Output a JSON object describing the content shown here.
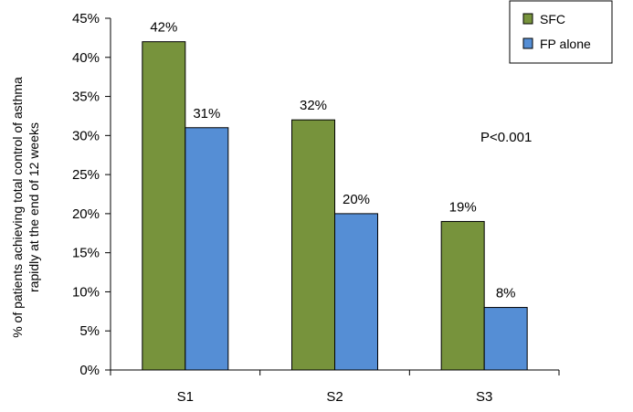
{
  "chart_data": {
    "type": "bar",
    "categories": [
      "S1",
      "S2",
      "S3"
    ],
    "series": [
      {
        "name": "SFC",
        "values": [
          42,
          32,
          19
        ],
        "color": "#77933c"
      },
      {
        "name": "FP alone",
        "values": [
          31,
          20,
          8
        ],
        "color": "#558ed5"
      }
    ],
    "data_labels": [
      [
        "42%",
        "32%",
        "19%"
      ],
      [
        "31%",
        "20%",
        "8%"
      ]
    ],
    "ylabel_lines": [
      "% of patients achieving total control of asthma",
      "rapidly at the end of 12 weeks"
    ],
    "ylim": [
      0,
      45
    ],
    "yticks": [
      0,
      5,
      10,
      15,
      20,
      25,
      30,
      35,
      40,
      45
    ],
    "ytick_labels": [
      "0%",
      "5%",
      "10%",
      "15%",
      "20%",
      "25%",
      "30%",
      "35%",
      "40%",
      "45%"
    ],
    "annotation": "P<0.001",
    "legend_position": "top-right",
    "grid": false
  }
}
